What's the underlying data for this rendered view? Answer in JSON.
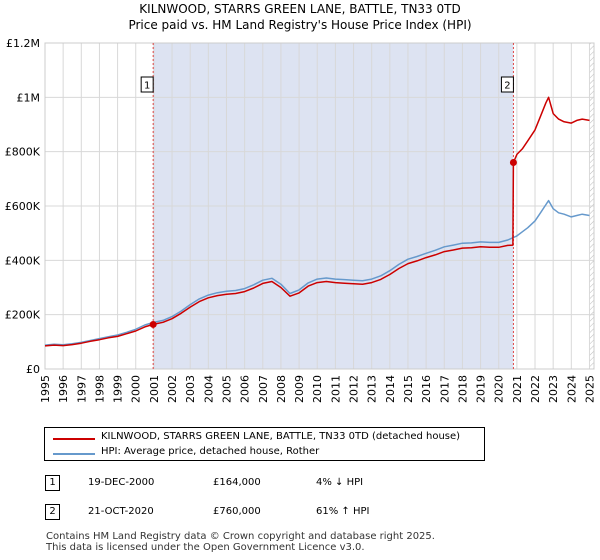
{
  "chart_data": {
    "type": "line",
    "title": "KILNWOOD, STARRS GREEN LANE, BATTLE, TN33 0TD",
    "subtitle": "Price paid vs. HM Land Registry's House Price Index (HPI)",
    "xlabel": "",
    "ylabel": "",
    "xlim": [
      1995,
      2025.25
    ],
    "ylim": [
      0,
      1200000
    ],
    "y_ticks": [
      {
        "value": 0,
        "label": "£0"
      },
      {
        "value": 200000,
        "label": "£200K"
      },
      {
        "value": 400000,
        "label": "£400K"
      },
      {
        "value": 600000,
        "label": "£600K"
      },
      {
        "value": 800000,
        "label": "£800K"
      },
      {
        "value": 1000000,
        "label": "£1M"
      },
      {
        "value": 1200000,
        "label": "£1.2M"
      }
    ],
    "x_ticks": [
      "1995",
      "1996",
      "1997",
      "1998",
      "1999",
      "2000",
      "2001",
      "2002",
      "2003",
      "2004",
      "2005",
      "2006",
      "2007",
      "2008",
      "2009",
      "2010",
      "2011",
      "2012",
      "2013",
      "2014",
      "2015",
      "2016",
      "2017",
      "2018",
      "2019",
      "2020",
      "2021",
      "2022",
      "2023",
      "2024",
      "2025"
    ],
    "series": [
      {
        "name": "KILNWOOD, STARRS GREEN LANE, BATTLE, TN33 0TD (detached house)",
        "color": "#cc0000",
        "x": [
          1995.0,
          1995.5,
          1996.0,
          1996.5,
          1997.0,
          1997.5,
          1998.0,
          1998.5,
          1999.0,
          1999.5,
          2000.0,
          2000.5,
          2000.96,
          2001.5,
          2002.0,
          2002.5,
          2003.0,
          2003.5,
          2004.0,
          2004.5,
          2005.0,
          2005.5,
          2006.0,
          2006.5,
          2007.0,
          2007.5,
          2008.0,
          2008.5,
          2009.0,
          2009.5,
          2010.0,
          2010.5,
          2011.0,
          2011.5,
          2012.0,
          2012.5,
          2013.0,
          2013.5,
          2014.0,
          2014.5,
          2015.0,
          2015.5,
          2016.0,
          2016.5,
          2017.0,
          2017.5,
          2018.0,
          2018.5,
          2019.0,
          2019.5,
          2020.0,
          2020.5,
          2020.78,
          2020.81,
          2021.0,
          2021.3,
          2021.6,
          2022.0,
          2022.3,
          2022.6,
          2022.75,
          2023.0,
          2023.3,
          2023.6,
          2024.0,
          2024.3,
          2024.6,
          2025.0
        ],
        "y": [
          85000,
          88000,
          86000,
          90000,
          95000,
          102000,
          108000,
          115000,
          120000,
          130000,
          140000,
          155000,
          164000,
          172000,
          185000,
          205000,
          228000,
          248000,
          262000,
          270000,
          275000,
          278000,
          285000,
          298000,
          315000,
          322000,
          300000,
          268000,
          280000,
          305000,
          318000,
          322000,
          318000,
          316000,
          314000,
          312000,
          318000,
          330000,
          348000,
          370000,
          388000,
          398000,
          410000,
          420000,
          432000,
          438000,
          445000,
          446000,
          450000,
          448000,
          448000,
          455000,
          456000,
          760000,
          790000,
          810000,
          840000,
          880000,
          930000,
          980000,
          1000000,
          940000,
          920000,
          910000,
          905000,
          915000,
          920000,
          915000
        ]
      },
      {
        "name": "HPI: Average price, detached house, Rother",
        "color": "#6699cc",
        "x": [
          1995.0,
          1995.5,
          1996.0,
          1996.5,
          1997.0,
          1997.5,
          1998.0,
          1998.5,
          1999.0,
          1999.5,
          2000.0,
          2000.5,
          2000.96,
          2001.5,
          2002.0,
          2002.5,
          2003.0,
          2003.5,
          2004.0,
          2004.5,
          2005.0,
          2005.5,
          2006.0,
          2006.5,
          2007.0,
          2007.5,
          2008.0,
          2008.5,
          2009.0,
          2009.5,
          2010.0,
          2010.5,
          2011.0,
          2011.5,
          2012.0,
          2012.5,
          2013.0,
          2013.5,
          2014.0,
          2014.5,
          2015.0,
          2015.5,
          2016.0,
          2016.5,
          2017.0,
          2017.5,
          2018.0,
          2018.5,
          2019.0,
          2019.5,
          2020.0,
          2020.5,
          2021.0,
          2021.3,
          2021.6,
          2022.0,
          2022.3,
          2022.6,
          2022.75,
          2023.0,
          2023.3,
          2023.6,
          2024.0,
          2024.3,
          2024.6,
          2025.0
        ],
        "y": [
          88000,
          91000,
          89000,
          93000,
          98000,
          105000,
          112000,
          119000,
          125000,
          135000,
          146000,
          162000,
          171000,
          179000,
          193000,
          213000,
          237000,
          258000,
          272000,
          281000,
          286000,
          289000,
          296000,
          310000,
          327000,
          334000,
          312000,
          278000,
          291000,
          317000,
          331000,
          335000,
          331000,
          329000,
          327000,
          325000,
          331000,
          343000,
          362000,
          385000,
          404000,
          414000,
          426000,
          437000,
          450000,
          456000,
          463000,
          464000,
          468000,
          466000,
          466000,
          475000,
          490000,
          505000,
          520000,
          545000,
          575000,
          605000,
          620000,
          590000,
          575000,
          570000,
          560000,
          565000,
          570000,
          565000
        ]
      }
    ],
    "annotations": [
      {
        "label": "1",
        "x": 2000.96,
        "y": 164000
      },
      {
        "label": "2",
        "x": 2020.81,
        "y": 760000
      }
    ]
  },
  "legend": {
    "property": "KILNWOOD, STARRS GREEN LANE, BATTLE, TN33 0TD (detached house)",
    "hpi": "HPI: Average price, detached house, Rother"
  },
  "sales": [
    {
      "num": "1",
      "date": "19-DEC-2000",
      "price": "£164,000",
      "hpi": "4% ↓ HPI"
    },
    {
      "num": "2",
      "date": "21-OCT-2020",
      "price": "£760,000",
      "hpi": "61% ↑ HPI"
    }
  ],
  "footer": {
    "line1": "Contains HM Land Registry data © Crown copyright and database right 2025.",
    "line2": "This data is licensed under the Open Government Licence v3.0."
  }
}
